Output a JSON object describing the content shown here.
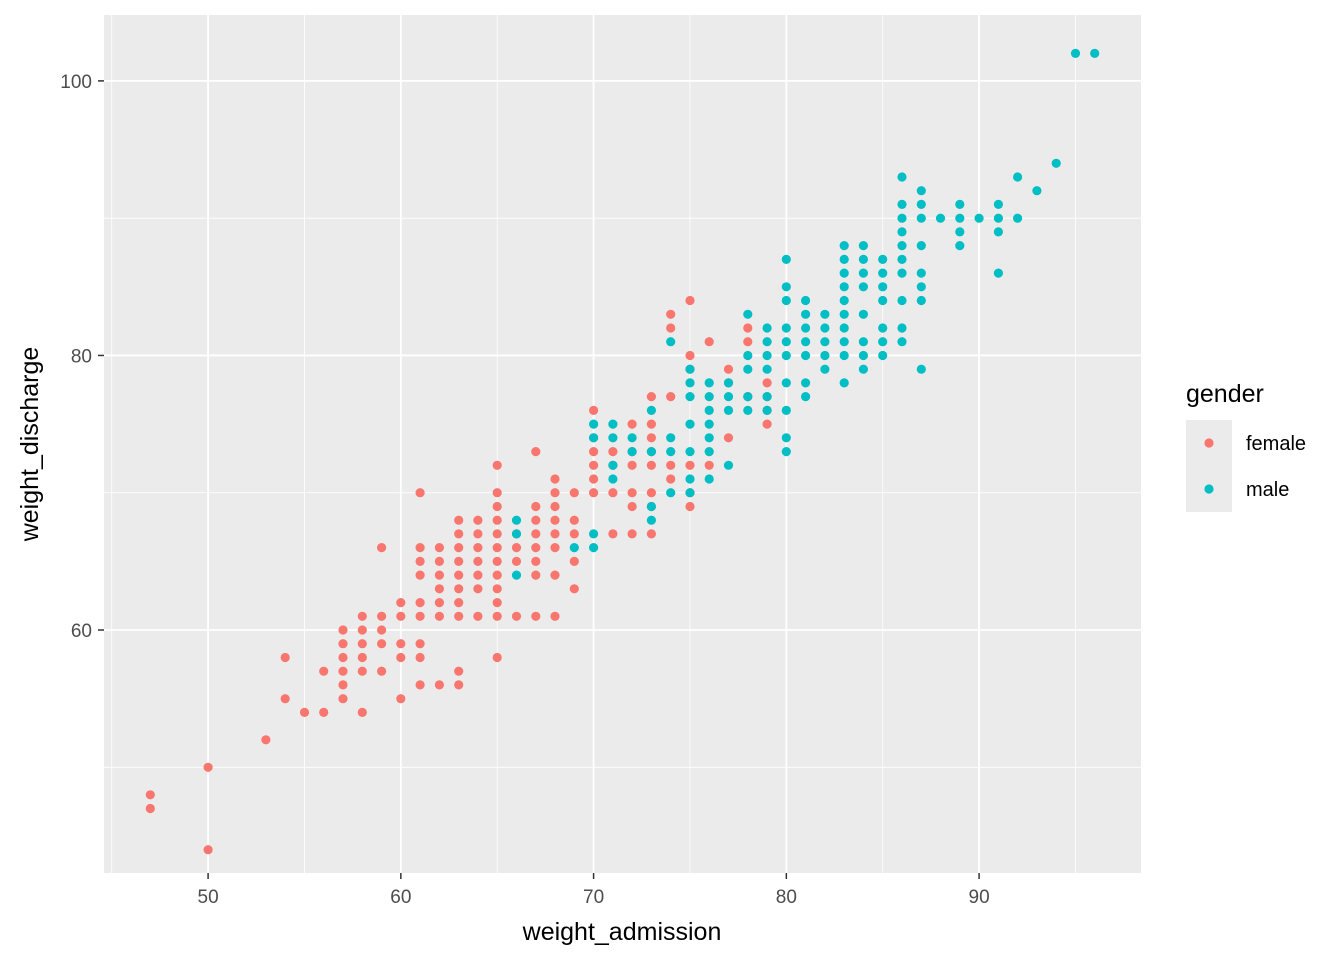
{
  "chart_data": {
    "type": "scatter",
    "xlabel": "weight_admission",
    "ylabel": "weight_discharge",
    "xlim": [
      44.6,
      98.4
    ],
    "ylim": [
      42.3,
      104.8
    ],
    "x_ticks": [
      50,
      60,
      70,
      80,
      90
    ],
    "y_ticks": [
      60,
      80,
      100
    ],
    "x_tick_labels": [
      "50",
      "60",
      "70",
      "80",
      "90"
    ],
    "y_tick_labels": [
      "60",
      "80",
      "100"
    ],
    "grid": true,
    "background": "#ebebeb",
    "legend": {
      "title": "gender",
      "placement": "right"
    },
    "series": [
      {
        "name": "female",
        "color": "#f8766d",
        "points": [
          [
            47,
            47
          ],
          [
            47,
            48
          ],
          [
            50,
            44
          ],
          [
            50,
            50
          ],
          [
            53,
            52
          ],
          [
            54,
            55
          ],
          [
            54,
            58
          ],
          [
            55,
            54
          ],
          [
            56,
            54
          ],
          [
            56,
            57
          ],
          [
            57,
            55
          ],
          [
            57,
            56
          ],
          [
            57,
            57
          ],
          [
            57,
            58
          ],
          [
            57,
            59
          ],
          [
            57,
            60
          ],
          [
            58,
            54
          ],
          [
            58,
            57
          ],
          [
            58,
            58
          ],
          [
            58,
            59
          ],
          [
            58,
            60
          ],
          [
            58,
            61
          ],
          [
            59,
            57
          ],
          [
            59,
            59
          ],
          [
            59,
            60
          ],
          [
            59,
            61
          ],
          [
            59,
            66
          ],
          [
            60,
            55
          ],
          [
            60,
            58
          ],
          [
            60,
            59
          ],
          [
            60,
            61
          ],
          [
            60,
            62
          ],
          [
            61,
            56
          ],
          [
            61,
            58
          ],
          [
            61,
            59
          ],
          [
            61,
            61
          ],
          [
            61,
            62
          ],
          [
            61,
            64
          ],
          [
            61,
            65
          ],
          [
            61,
            66
          ],
          [
            61,
            70
          ],
          [
            62,
            56
          ],
          [
            62,
            61
          ],
          [
            62,
            62
          ],
          [
            62,
            63
          ],
          [
            62,
            64
          ],
          [
            62,
            65
          ],
          [
            62,
            66
          ],
          [
            63,
            56
          ],
          [
            63,
            57
          ],
          [
            63,
            61
          ],
          [
            63,
            62
          ],
          [
            63,
            63
          ],
          [
            63,
            64
          ],
          [
            63,
            65
          ],
          [
            63,
            66
          ],
          [
            63,
            67
          ],
          [
            63,
            68
          ],
          [
            64,
            61
          ],
          [
            64,
            63
          ],
          [
            64,
            64
          ],
          [
            64,
            65
          ],
          [
            64,
            66
          ],
          [
            64,
            67
          ],
          [
            64,
            68
          ],
          [
            65,
            58
          ],
          [
            65,
            61
          ],
          [
            65,
            62
          ],
          [
            65,
            63
          ],
          [
            65,
            64
          ],
          [
            65,
            65
          ],
          [
            65,
            66
          ],
          [
            65,
            67
          ],
          [
            65,
            68
          ],
          [
            65,
            69
          ],
          [
            65,
            70
          ],
          [
            65,
            72
          ],
          [
            66,
            61
          ],
          [
            66,
            65
          ],
          [
            66,
            66
          ],
          [
            66,
            67
          ],
          [
            67,
            61
          ],
          [
            67,
            64
          ],
          [
            67,
            65
          ],
          [
            67,
            66
          ],
          [
            67,
            67
          ],
          [
            67,
            68
          ],
          [
            67,
            69
          ],
          [
            67,
            73
          ],
          [
            68,
            61
          ],
          [
            68,
            64
          ],
          [
            68,
            66
          ],
          [
            68,
            67
          ],
          [
            68,
            68
          ],
          [
            68,
            69
          ],
          [
            68,
            70
          ],
          [
            68,
            71
          ],
          [
            69,
            63
          ],
          [
            69,
            65
          ],
          [
            69,
            67
          ],
          [
            69,
            68
          ],
          [
            69,
            70
          ],
          [
            70,
            70
          ],
          [
            70,
            71
          ],
          [
            70,
            72
          ],
          [
            70,
            73
          ],
          [
            70,
            74
          ],
          [
            70,
            76
          ],
          [
            71,
            67
          ],
          [
            71,
            70
          ],
          [
            71,
            72
          ],
          [
            71,
            73
          ],
          [
            72,
            67
          ],
          [
            72,
            69
          ],
          [
            72,
            70
          ],
          [
            72,
            72
          ],
          [
            72,
            73
          ],
          [
            72,
            75
          ],
          [
            73,
            67
          ],
          [
            73,
            69
          ],
          [
            73,
            70
          ],
          [
            73,
            72
          ],
          [
            73,
            73
          ],
          [
            73,
            74
          ],
          [
            73,
            75
          ],
          [
            73,
            77
          ],
          [
            74,
            71
          ],
          [
            74,
            72
          ],
          [
            74,
            77
          ],
          [
            74,
            82
          ],
          [
            74,
            83
          ],
          [
            75,
            69
          ],
          [
            75,
            70
          ],
          [
            75,
            72
          ],
          [
            75,
            79
          ],
          [
            75,
            80
          ],
          [
            75,
            84
          ],
          [
            76,
            72
          ],
          [
            76,
            81
          ],
          [
            77,
            74
          ],
          [
            77,
            78
          ],
          [
            77,
            79
          ],
          [
            78,
            77
          ],
          [
            78,
            81
          ],
          [
            78,
            82
          ],
          [
            79,
            75
          ],
          [
            79,
            76
          ],
          [
            79,
            77
          ],
          [
            79,
            78
          ]
        ]
      },
      {
        "name": "male",
        "color": "#00bfc4",
        "points": [
          [
            66,
            64
          ],
          [
            66,
            67
          ],
          [
            66,
            68
          ],
          [
            69,
            66
          ],
          [
            70,
            66
          ],
          [
            70,
            67
          ],
          [
            70,
            74
          ],
          [
            70,
            75
          ],
          [
            71,
            71
          ],
          [
            71,
            72
          ],
          [
            71,
            74
          ],
          [
            71,
            75
          ],
          [
            72,
            73
          ],
          [
            72,
            74
          ],
          [
            73,
            68
          ],
          [
            73,
            69
          ],
          [
            73,
            73
          ],
          [
            73,
            76
          ],
          [
            74,
            70
          ],
          [
            74,
            73
          ],
          [
            74,
            74
          ],
          [
            74,
            81
          ],
          [
            75,
            70
          ],
          [
            75,
            71
          ],
          [
            75,
            73
          ],
          [
            75,
            75
          ],
          [
            75,
            77
          ],
          [
            75,
            78
          ],
          [
            75,
            79
          ],
          [
            76,
            71
          ],
          [
            76,
            73
          ],
          [
            76,
            74
          ],
          [
            76,
            75
          ],
          [
            76,
            76
          ],
          [
            76,
            77
          ],
          [
            76,
            78
          ],
          [
            77,
            72
          ],
          [
            77,
            76
          ],
          [
            77,
            77
          ],
          [
            77,
            78
          ],
          [
            78,
            76
          ],
          [
            78,
            77
          ],
          [
            78,
            79
          ],
          [
            78,
            80
          ],
          [
            78,
            83
          ],
          [
            79,
            76
          ],
          [
            79,
            77
          ],
          [
            79,
            79
          ],
          [
            79,
            80
          ],
          [
            79,
            81
          ],
          [
            79,
            82
          ],
          [
            80,
            73
          ],
          [
            80,
            74
          ],
          [
            80,
            76
          ],
          [
            80,
            78
          ],
          [
            80,
            80
          ],
          [
            80,
            81
          ],
          [
            80,
            82
          ],
          [
            80,
            84
          ],
          [
            80,
            85
          ],
          [
            80,
            87
          ],
          [
            81,
            77
          ],
          [
            81,
            78
          ],
          [
            81,
            80
          ],
          [
            81,
            81
          ],
          [
            81,
            82
          ],
          [
            81,
            83
          ],
          [
            81,
            84
          ],
          [
            82,
            79
          ],
          [
            82,
            80
          ],
          [
            82,
            81
          ],
          [
            82,
            82
          ],
          [
            82,
            83
          ],
          [
            83,
            78
          ],
          [
            83,
            80
          ],
          [
            83,
            81
          ],
          [
            83,
            82
          ],
          [
            83,
            83
          ],
          [
            83,
            84
          ],
          [
            83,
            85
          ],
          [
            83,
            86
          ],
          [
            83,
            87
          ],
          [
            83,
            88
          ],
          [
            84,
            79
          ],
          [
            84,
            80
          ],
          [
            84,
            81
          ],
          [
            84,
            83
          ],
          [
            84,
            85
          ],
          [
            84,
            86
          ],
          [
            84,
            87
          ],
          [
            84,
            88
          ],
          [
            85,
            80
          ],
          [
            85,
            81
          ],
          [
            85,
            82
          ],
          [
            85,
            84
          ],
          [
            85,
            85
          ],
          [
            85,
            86
          ],
          [
            85,
            87
          ],
          [
            86,
            81
          ],
          [
            86,
            82
          ],
          [
            86,
            84
          ],
          [
            86,
            86
          ],
          [
            86,
            87
          ],
          [
            86,
            88
          ],
          [
            86,
            89
          ],
          [
            86,
            90
          ],
          [
            86,
            91
          ],
          [
            86,
            93
          ],
          [
            87,
            79
          ],
          [
            87,
            84
          ],
          [
            87,
            85
          ],
          [
            87,
            86
          ],
          [
            87,
            88
          ],
          [
            87,
            90
          ],
          [
            87,
            91
          ],
          [
            87,
            92
          ],
          [
            88,
            90
          ],
          [
            89,
            88
          ],
          [
            89,
            89
          ],
          [
            89,
            90
          ],
          [
            89,
            91
          ],
          [
            90,
            90
          ],
          [
            91,
            86
          ],
          [
            91,
            89
          ],
          [
            91,
            90
          ],
          [
            91,
            91
          ],
          [
            92,
            90
          ],
          [
            92,
            93
          ],
          [
            93,
            92
          ],
          [
            94,
            94
          ],
          [
            95,
            102
          ],
          [
            96,
            102
          ]
        ]
      }
    ]
  }
}
